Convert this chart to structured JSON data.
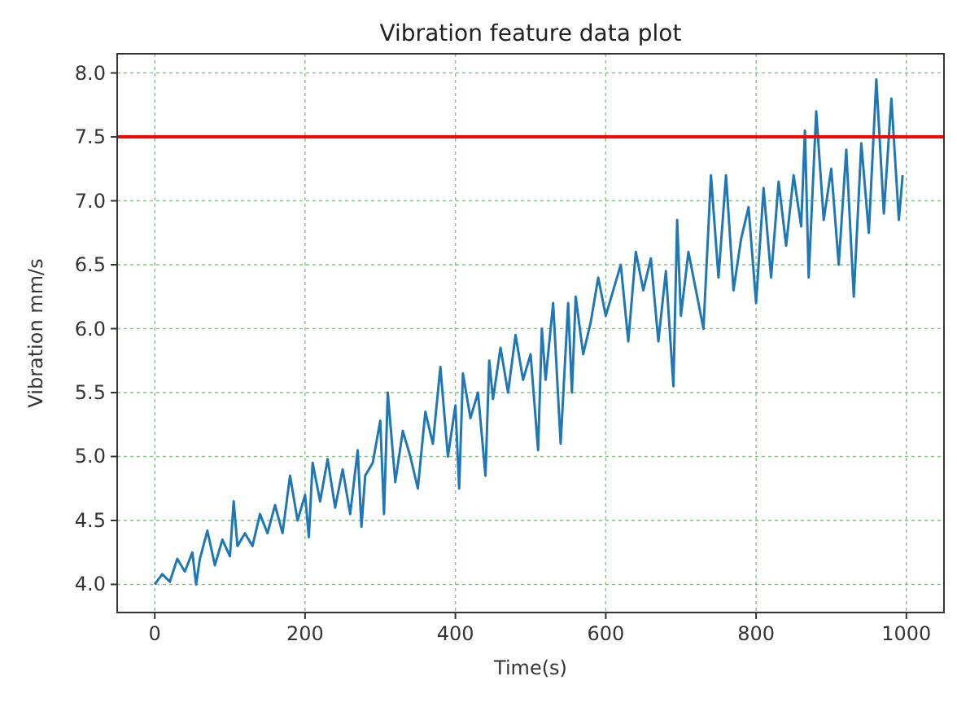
{
  "chart_data": {
    "type": "line",
    "title": "Vibration feature data plot",
    "xlabel": "Time(s)",
    "ylabel": "Vibration mm/s",
    "xlim": [
      -50,
      1050
    ],
    "xticks": [
      0,
      200,
      400,
      600,
      800,
      1000
    ],
    "ylim": [
      3.78,
      8.15
    ],
    "yticks": [
      {
        "value": 4,
        "label": "4.0"
      },
      4.5,
      {
        "value": 5,
        "label": "5.0"
      },
      5.5,
      {
        "value": 6,
        "label": "6.0"
      },
      6.5,
      {
        "value": 7,
        "label": "7.0"
      },
      7.5,
      {
        "value": 8,
        "label": "8.0"
      }
    ],
    "grid": true,
    "marker": "none",
    "line_style": "solid",
    "ref_lines": [
      {
        "axis": "y",
        "value": 7.5,
        "color": "#ff0000"
      }
    ],
    "series": [
      {
        "color": "#1f77b4",
        "x": [
          0,
          10,
          20,
          30,
          40,
          50,
          55,
          60,
          70,
          80,
          90,
          100,
          105,
          110,
          120,
          130,
          140,
          150,
          160,
          170,
          180,
          190,
          200,
          205,
          210,
          220,
          230,
          240,
          250,
          260,
          270,
          275,
          280,
          290,
          300,
          305,
          310,
          320,
          330,
          340,
          350,
          360,
          370,
          380,
          390,
          400,
          405,
          410,
          420,
          430,
          440,
          445,
          450,
          460,
          470,
          480,
          490,
          500,
          510,
          515,
          520,
          530,
          540,
          550,
          555,
          560,
          570,
          580,
          590,
          600,
          610,
          620,
          630,
          640,
          650,
          660,
          670,
          680,
          690,
          695,
          700,
          710,
          720,
          730,
          740,
          750,
          760,
          770,
          780,
          790,
          800,
          810,
          820,
          830,
          840,
          850,
          860,
          865,
          870,
          880,
          890,
          900,
          910,
          920,
          930,
          940,
          950,
          960,
          970,
          980,
          990,
          995
        ],
        "values": [
          4.0,
          4.08,
          4.02,
          4.2,
          4.1,
          4.25,
          4.0,
          4.2,
          4.42,
          4.15,
          4.35,
          4.22,
          4.65,
          4.3,
          4.4,
          4.3,
          4.55,
          4.4,
          4.62,
          4.4,
          4.85,
          4.5,
          4.7,
          4.37,
          4.95,
          4.65,
          4.98,
          4.6,
          4.9,
          4.55,
          5.05,
          4.45,
          4.85,
          4.95,
          5.28,
          4.55,
          5.5,
          4.8,
          5.2,
          5.0,
          4.75,
          5.35,
          5.1,
          5.7,
          5.0,
          5.4,
          4.75,
          5.65,
          5.3,
          5.5,
          4.85,
          5.75,
          5.45,
          5.85,
          5.5,
          5.95,
          5.6,
          5.8,
          5.05,
          6.0,
          5.6,
          6.2,
          5.1,
          6.2,
          5.5,
          6.25,
          5.8,
          6.05,
          6.4,
          6.1,
          6.3,
          6.5,
          5.9,
          6.6,
          6.3,
          6.55,
          5.9,
          6.45,
          5.55,
          6.85,
          6.1,
          6.6,
          6.3,
          6.0,
          7.2,
          6.4,
          7.2,
          6.3,
          6.7,
          6.95,
          6.2,
          7.1,
          6.4,
          7.15,
          6.65,
          7.2,
          6.8,
          7.55,
          6.4,
          7.7,
          6.85,
          7.25,
          6.5,
          7.4,
          6.25,
          7.45,
          6.75,
          7.95,
          6.9,
          7.8,
          6.85,
          7.2
        ]
      }
    ]
  }
}
